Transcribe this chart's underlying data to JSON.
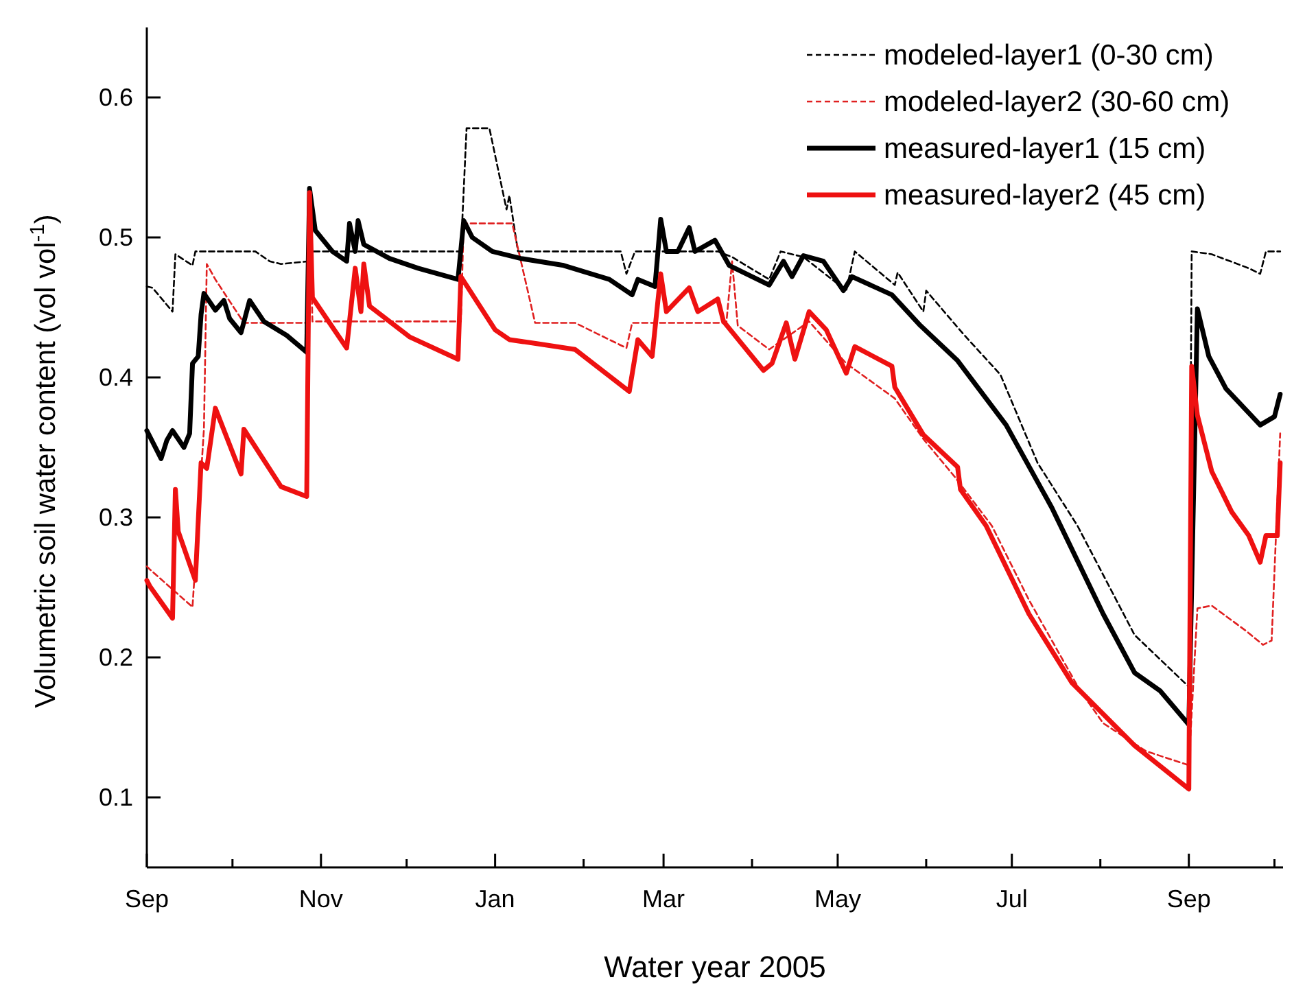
{
  "chart_data": {
    "type": "line",
    "xlabel": "Water year 2005",
    "ylabel": "Volumetric soil water content (vol vol$^{-1}$)",
    "xlim": [
      "2004-09-01",
      "2005-10-04"
    ],
    "ylim": [
      0.05,
      0.65
    ],
    "xticks": [
      {
        "value": "2004-09-01",
        "label": "Sep"
      },
      {
        "value": "2004-10-01",
        "label": null
      },
      {
        "value": "2004-11-01",
        "label": "Nov"
      },
      {
        "value": "2004-12-01",
        "label": null
      },
      {
        "value": "2005-01-01",
        "label": "Jan"
      },
      {
        "value": "2005-02-01",
        "label": null
      },
      {
        "value": "2005-03-01",
        "label": "Mar"
      },
      {
        "value": "2005-04-01",
        "label": null
      },
      {
        "value": "2005-05-01",
        "label": "May"
      },
      {
        "value": "2005-06-01",
        "label": null
      },
      {
        "value": "2005-07-01",
        "label": "Jul"
      },
      {
        "value": "2005-08-01",
        "label": null
      },
      {
        "value": "2005-09-01",
        "label": "Sep"
      },
      {
        "value": "2005-10-01",
        "label": null
      }
    ],
    "yticks": [
      0.1,
      0.2,
      0.3,
      0.4,
      0.5,
      0.6
    ],
    "grid": false,
    "legend": "top right",
    "marker": "none",
    "series": [
      {
        "name": "modeled-layer1 (0-30 cm)",
        "color": "#000000",
        "line_style": "dashed",
        "x": [
          "2004-09-01",
          "2004-09-03",
          "2004-09-10",
          "2004-09-11",
          "2004-09-17",
          "2004-09-18",
          "2004-10-09",
          "2004-10-14",
          "2004-10-18",
          "2004-10-28",
          "2004-10-29",
          "2004-12-20",
          "2004-12-22",
          "2004-12-30",
          "2005-01-05",
          "2005-01-06",
          "2005-01-09",
          "2005-02-14",
          "2005-02-16",
          "2005-02-19",
          "2005-03-20",
          "2005-03-25",
          "2005-04-07",
          "2005-04-11",
          "2005-04-19",
          "2005-05-04",
          "2005-05-07",
          "2005-05-21",
          "2005-05-22",
          "2005-05-31",
          "2005-06-01",
          "2005-06-14",
          "2005-06-27",
          "2005-07-10",
          "2005-07-24",
          "2005-08-13",
          "2005-09-01",
          "2005-09-02",
          "2005-09-09",
          "2005-09-22",
          "2005-09-26",
          "2005-09-28",
          "2005-10-03"
        ],
        "values": [
          0.465,
          0.464,
          0.447,
          0.488,
          0.48,
          0.49,
          0.49,
          0.483,
          0.481,
          0.483,
          0.49,
          0.49,
          0.578,
          0.578,
          0.52,
          0.53,
          0.49,
          0.49,
          0.474,
          0.49,
          0.49,
          0.486,
          0.47,
          0.49,
          0.486,
          0.462,
          0.49,
          0.466,
          0.475,
          0.447,
          0.462,
          0.431,
          0.402,
          0.339,
          0.294,
          0.216,
          0.179,
          0.49,
          0.488,
          0.478,
          0.474,
          0.49,
          0.49
        ]
      },
      {
        "name": "modeled-layer2 (30-60 cm)",
        "color": "#e02020",
        "line_style": "dashed",
        "x": [
          "2004-09-01",
          "2004-09-02",
          "2004-09-17",
          "2004-09-21",
          "2004-09-22",
          "2004-09-25",
          "2004-10-05",
          "2004-10-27",
          "2004-10-28",
          "2004-10-29",
          "2004-12-20",
          "2004-12-21",
          "2005-01-07",
          "2005-01-15",
          "2005-01-29",
          "2005-02-16",
          "2005-02-18",
          "2005-03-23",
          "2005-03-25",
          "2005-03-27",
          "2005-04-07",
          "2005-04-21",
          "2005-05-04",
          "2005-05-21",
          "2005-05-31",
          "2005-06-11",
          "2005-06-24",
          "2005-07-07",
          "2005-07-25",
          "2005-08-02",
          "2005-08-17",
          "2005-09-01",
          "2005-09-04",
          "2005-09-09",
          "2005-09-21",
          "2005-09-27",
          "2005-09-30",
          "2005-10-03"
        ],
        "values": [
          0.265,
          0.263,
          0.236,
          0.363,
          0.481,
          0.47,
          0.439,
          0.439,
          0.53,
          0.44,
          0.44,
          0.51,
          0.51,
          0.439,
          0.439,
          0.421,
          0.439,
          0.439,
          0.483,
          0.437,
          0.42,
          0.44,
          0.41,
          0.385,
          0.356,
          0.329,
          0.294,
          0.241,
          0.176,
          0.153,
          0.133,
          0.123,
          0.235,
          0.237,
          0.219,
          0.209,
          0.212,
          0.36
        ]
      },
      {
        "name": "measured-layer1 (15 cm)",
        "color": "#000000",
        "line_style": "solid",
        "x": [
          "2004-09-01",
          "2004-09-06",
          "2004-09-08",
          "2004-09-10",
          "2004-09-14",
          "2004-09-16",
          "2004-09-17",
          "2004-09-19",
          "2004-09-20",
          "2004-09-21",
          "2004-09-25",
          "2004-09-28",
          "2004-09-30",
          "2004-10-04",
          "2004-10-07",
          "2004-10-12",
          "2004-10-20",
          "2004-10-27",
          "2004-10-28",
          "2004-10-30",
          "2004-11-05",
          "2004-11-10",
          "2004-11-11",
          "2004-11-13",
          "2004-11-14",
          "2004-11-16",
          "2004-11-25",
          "2004-12-05",
          "2004-12-19",
          "2004-12-21",
          "2004-12-24",
          "2004-12-31",
          "2005-01-10",
          "2005-01-25",
          "2005-02-10",
          "2005-02-18",
          "2005-02-20",
          "2005-02-26",
          "2005-02-28",
          "2005-03-02",
          "2005-03-06",
          "2005-03-10",
          "2005-03-12",
          "2005-03-19",
          "2005-03-24",
          "2005-04-07",
          "2005-04-12",
          "2005-04-15",
          "2005-04-19",
          "2005-04-26",
          "2005-05-03",
          "2005-05-06",
          "2005-05-20",
          "2005-05-30",
          "2005-06-12",
          "2005-06-29",
          "2005-07-15",
          "2005-08-02",
          "2005-08-13",
          "2005-08-22",
          "2005-09-01",
          "2005-09-04",
          "2005-09-08",
          "2005-09-14",
          "2005-09-26",
          "2005-10-01",
          "2005-10-03"
        ],
        "values": [
          0.362,
          0.342,
          0.355,
          0.362,
          0.35,
          0.36,
          0.41,
          0.415,
          0.445,
          0.46,
          0.448,
          0.455,
          0.442,
          0.432,
          0.455,
          0.44,
          0.43,
          0.418,
          0.535,
          0.505,
          0.49,
          0.483,
          0.51,
          0.49,
          0.512,
          0.495,
          0.485,
          0.478,
          0.47,
          0.512,
          0.5,
          0.49,
          0.485,
          0.48,
          0.47,
          0.459,
          0.47,
          0.465,
          0.513,
          0.49,
          0.49,
          0.507,
          0.49,
          0.498,
          0.48,
          0.466,
          0.483,
          0.472,
          0.487,
          0.483,
          0.462,
          0.472,
          0.459,
          0.437,
          0.412,
          0.366,
          0.307,
          0.231,
          0.189,
          0.176,
          0.152,
          0.449,
          0.415,
          0.392,
          0.366,
          0.372,
          0.388
        ]
      },
      {
        "name": "measured-layer2 (45 cm)",
        "color": "#ee1111",
        "line_style": "solid",
        "x": [
          "2004-09-01",
          "2004-09-02",
          "2004-09-10",
          "2004-09-11",
          "2004-09-12",
          "2004-09-18",
          "2004-09-20",
          "2004-09-22",
          "2004-09-25",
          "2004-10-04",
          "2004-10-05",
          "2004-10-18",
          "2004-10-27",
          "2004-10-28",
          "2004-10-29",
          "2004-11-10",
          "2004-11-13",
          "2004-11-15",
          "2004-11-16",
          "2004-11-18",
          "2004-12-02",
          "2004-12-19",
          "2004-12-20",
          "2005-01-01",
          "2005-01-06",
          "2005-01-16",
          "2005-01-29",
          "2005-02-17",
          "2005-02-20",
          "2005-02-25",
          "2005-02-28",
          "2005-03-02",
          "2005-03-10",
          "2005-03-13",
          "2005-03-20",
          "2005-03-22",
          "2005-04-05",
          "2005-04-08",
          "2005-04-13",
          "2005-04-16",
          "2005-04-21",
          "2005-04-27",
          "2005-05-04",
          "2005-05-07",
          "2005-05-20",
          "2005-05-21",
          "2005-05-31",
          "2005-06-12",
          "2005-06-13",
          "2005-06-22",
          "2005-07-07",
          "2005-07-22",
          "2005-08-13",
          "2005-09-01",
          "2005-09-02",
          "2005-09-04",
          "2005-09-09",
          "2005-09-16",
          "2005-09-22",
          "2005-09-26",
          "2005-09-28",
          "2005-10-02",
          "2005-10-03"
        ],
        "values": [
          0.255,
          0.251,
          0.228,
          0.32,
          0.29,
          0.255,
          0.339,
          0.335,
          0.378,
          0.331,
          0.363,
          0.322,
          0.315,
          0.532,
          0.457,
          0.421,
          0.478,
          0.447,
          0.481,
          0.451,
          0.429,
          0.413,
          0.472,
          0.434,
          0.427,
          0.424,
          0.42,
          0.39,
          0.427,
          0.415,
          0.474,
          0.447,
          0.464,
          0.447,
          0.456,
          0.44,
          0.405,
          0.41,
          0.439,
          0.413,
          0.447,
          0.434,
          0.403,
          0.422,
          0.408,
          0.393,
          0.359,
          0.336,
          0.32,
          0.294,
          0.231,
          0.182,
          0.137,
          0.106,
          0.408,
          0.373,
          0.333,
          0.304,
          0.287,
          0.268,
          0.287,
          0.287,
          0.339
        ]
      }
    ]
  }
}
